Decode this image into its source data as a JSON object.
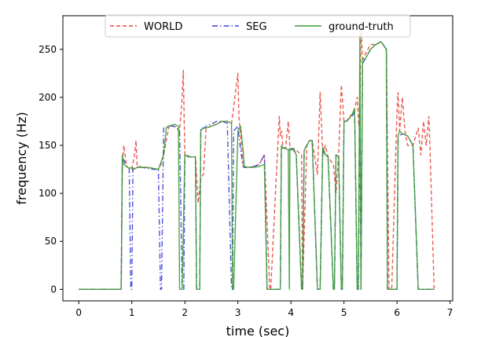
{
  "chart_data": {
    "type": "line",
    "title": "",
    "xlabel": "time (sec)",
    "ylabel": "frequency (Hz)",
    "xlim": [
      -0.3,
      7.05
    ],
    "ylim": [
      -12,
      285
    ],
    "xticks": [
      0,
      1,
      2,
      3,
      4,
      5,
      6,
      7
    ],
    "yticks": [
      0,
      50,
      100,
      150,
      200,
      250
    ],
    "grid": false,
    "legend_position": "top-center",
    "series": [
      {
        "name": "WORLD",
        "color": "#e8483f",
        "style": "dashed",
        "x": [
          0,
          0.8,
          0.82,
          0.85,
          0.9,
          0.95,
          1.0,
          1.05,
          1.08,
          1.1,
          1.15,
          1.2,
          1.3,
          1.4,
          1.5,
          1.55,
          1.6,
          1.7,
          1.8,
          1.9,
          1.95,
          1.97,
          2.0,
          2.05,
          2.2,
          2.25,
          2.3,
          2.35,
          2.4,
          2.5,
          2.6,
          2.7,
          2.8,
          2.88,
          2.92,
          3.0,
          3.02,
          3.05,
          3.1,
          3.12,
          3.2,
          3.3,
          3.4,
          3.5,
          3.6,
          3.62,
          3.78,
          3.8,
          3.82,
          3.85,
          3.9,
          3.95,
          3.98,
          4.0,
          4.1,
          4.2,
          4.22,
          4.3,
          4.35,
          4.4,
          4.5,
          4.55,
          4.6,
          4.65,
          4.7,
          4.8,
          4.85,
          4.9,
          4.95,
          5.0,
          5.05,
          5.1,
          5.15,
          5.2,
          5.25,
          5.28,
          5.3,
          5.32,
          5.35,
          5.4,
          5.5,
          5.6,
          5.7,
          5.8,
          5.85,
          5.9,
          6.0,
          6.02,
          6.05,
          6.1,
          6.15,
          6.2,
          6.3,
          6.4,
          6.45,
          6.5,
          6.55,
          6.6,
          6.62,
          6.7
        ],
        "y": [
          0,
          0,
          130,
          150,
          128,
          126,
          125,
          140,
          155,
          127,
          128,
          127,
          127,
          126,
          125,
          130,
          140,
          170,
          170,
          165,
          200,
          228,
          140,
          138,
          138,
          90,
          115,
          120,
          168,
          170,
          172,
          175,
          175,
          173,
          190,
          225,
          180,
          160,
          128,
          127,
          127,
          128,
          130,
          140,
          0,
          0,
          180,
          160,
          165,
          148,
          147,
          175,
          150,
          147,
          145,
          140,
          0,
          150,
          155,
          155,
          120,
          205,
          140,
          150,
          138,
          130,
          100,
          140,
          213,
          175,
          175,
          180,
          182,
          188,
          200,
          170,
          180,
          275,
          240,
          245,
          255,
          255,
          258,
          250,
          0,
          0,
          185,
          205,
          165,
          200,
          165,
          150,
          150,
          168,
          140,
          175,
          150,
          180,
          150,
          0
        ]
      },
      {
        "name": "SEG",
        "color": "#3d3ddb",
        "style": "dashdot",
        "x": [
          0,
          0.8,
          0.82,
          0.85,
          0.9,
          0.95,
          0.98,
          1.0,
          1.02,
          1.05,
          1.1,
          1.2,
          1.3,
          1.4,
          1.5,
          1.54,
          1.56,
          1.6,
          1.7,
          1.8,
          1.9,
          1.95,
          1.98,
          2.0,
          2.1,
          2.2,
          2.22,
          2.28,
          2.3,
          2.35,
          2.37,
          2.4,
          2.5,
          2.6,
          2.7,
          2.8,
          2.88,
          2.9,
          2.92,
          3.0,
          3.05,
          3.1,
          3.12,
          3.2,
          3.3,
          3.4,
          3.5,
          3.55,
          3.57,
          3.8,
          3.82,
          3.85,
          3.9,
          3.95,
          4.0,
          4.05,
          4.1,
          4.2,
          4.22,
          4.25,
          4.3,
          4.35,
          4.4,
          4.5,
          4.55,
          4.6,
          4.65,
          4.7,
          4.8,
          4.82,
          4.85,
          4.9,
          4.95,
          4.97,
          5.0,
          5.05,
          5.1,
          5.15,
          5.2,
          5.25,
          5.27,
          5.3,
          5.32,
          5.35,
          5.4,
          5.5,
          5.6,
          5.7,
          5.8,
          5.82,
          6.0,
          6.02,
          6.05,
          6.1,
          6.2,
          6.3,
          6.4,
          6.42,
          6.7
        ],
        "y": [
          0,
          0,
          130,
          135,
          128,
          126,
          0,
          0,
          125,
          127,
          127,
          127,
          126,
          125,
          125,
          0,
          0,
          168,
          170,
          170,
          165,
          0,
          0,
          140,
          138,
          138,
          0,
          0,
          168,
          168,
          168,
          170,
          172,
          175,
          175,
          173,
          0,
          0,
          165,
          170,
          145,
          128,
          127,
          127,
          128,
          130,
          140,
          0,
          0,
          0,
          148,
          147,
          147,
          145,
          147,
          145,
          140,
          0,
          0,
          145,
          150,
          155,
          155,
          0,
          0,
          148,
          140,
          138,
          0,
          0,
          140,
          138,
          0,
          0,
          175,
          175,
          178,
          180,
          185,
          0,
          0,
          190,
          0,
          235,
          240,
          250,
          255,
          258,
          250,
          0,
          0,
          160,
          160,
          162,
          160,
          150,
          0,
          0,
          0
        ]
      },
      {
        "name": "ground-truth",
        "color": "#3c9b34",
        "style": "solid",
        "x": [
          0,
          0.8,
          0.82,
          0.85,
          0.9,
          0.95,
          1.0,
          1.02,
          1.05,
          1.1,
          1.2,
          1.3,
          1.4,
          1.5,
          1.6,
          1.65,
          1.7,
          1.8,
          1.88,
          1.9,
          1.95,
          2.0,
          2.1,
          2.2,
          2.22,
          2.28,
          2.3,
          2.35,
          2.4,
          2.5,
          2.6,
          2.7,
          2.8,
          2.88,
          2.9,
          2.92,
          3.0,
          3.05,
          3.1,
          3.12,
          3.2,
          3.3,
          3.4,
          3.5,
          3.55,
          3.57,
          3.8,
          3.82,
          3.85,
          3.9,
          3.95,
          3.97,
          3.98,
          4.0,
          4.05,
          4.1,
          4.2,
          4.22,
          4.25,
          4.3,
          4.35,
          4.4,
          4.5,
          4.55,
          4.6,
          4.65,
          4.7,
          4.8,
          4.82,
          4.85,
          4.9,
          4.95,
          4.97,
          5.0,
          5.05,
          5.1,
          5.15,
          5.2,
          5.25,
          5.27,
          5.3,
          5.32,
          5.35,
          5.4,
          5.5,
          5.6,
          5.7,
          5.8,
          5.82,
          6.0,
          6.02,
          6.05,
          6.1,
          6.2,
          6.3,
          6.4,
          6.42,
          6.7
        ],
        "y": [
          0,
          0,
          140,
          130,
          128,
          126,
          127,
          126,
          125,
          127,
          127,
          127,
          126,
          125,
          140,
          168,
          170,
          172,
          170,
          0,
          0,
          140,
          138,
          138,
          0,
          0,
          165,
          168,
          168,
          170,
          172,
          175,
          175,
          173,
          0,
          0,
          165,
          170,
          145,
          128,
          127,
          127,
          128,
          130,
          0,
          0,
          0,
          150,
          147,
          147,
          145,
          0,
          147,
          145,
          147,
          140,
          0,
          0,
          145,
          150,
          155,
          155,
          0,
          0,
          148,
          140,
          138,
          0,
          0,
          140,
          138,
          0,
          0,
          175,
          175,
          178,
          182,
          188,
          0,
          0,
          265,
          0,
          240,
          240,
          250,
          255,
          258,
          250,
          0,
          0,
          160,
          165,
          162,
          160,
          150,
          0,
          0,
          0
        ]
      }
    ]
  }
}
